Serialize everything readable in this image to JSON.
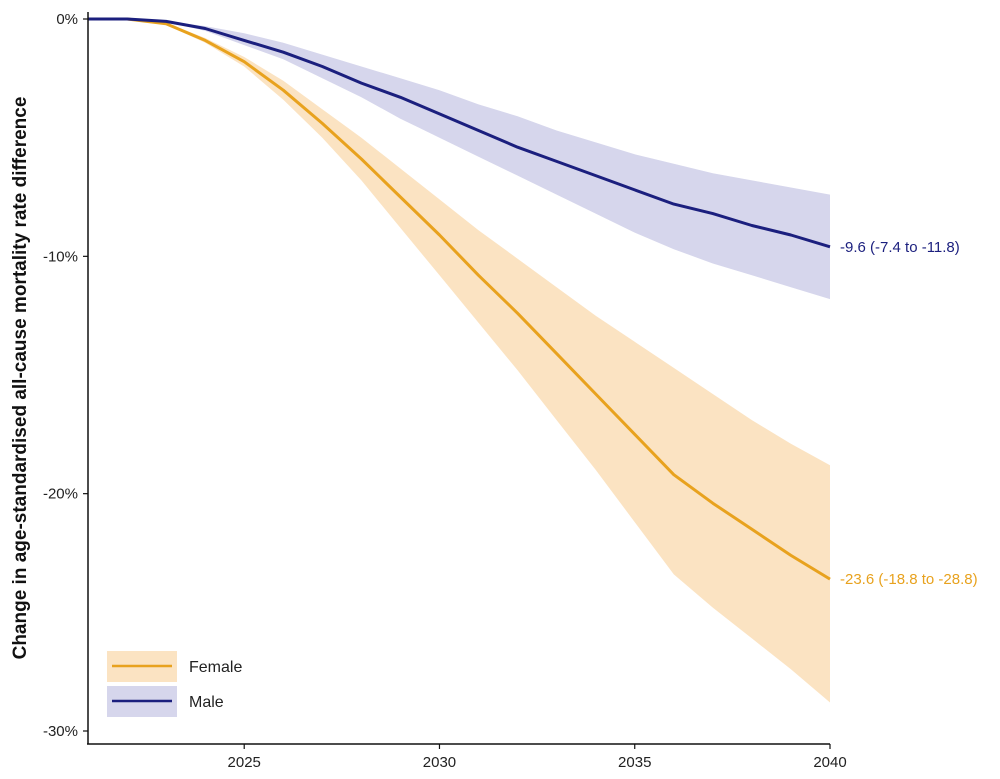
{
  "chart_data": {
    "type": "line",
    "ylabel": "Change in age-standardised all-cause mortality rate difference",
    "xlabel": "",
    "x": [
      2021,
      2022,
      2023,
      2024,
      2025,
      2026,
      2027,
      2028,
      2029,
      2030,
      2031,
      2032,
      2033,
      2034,
      2035,
      2036,
      2037,
      2038,
      2039,
      2040
    ],
    "xlim": [
      2021,
      2040
    ],
    "ylim": [
      -30,
      0
    ],
    "x_ticks": [
      2025,
      2030,
      2035,
      2040
    ],
    "y_ticks": [
      0,
      -10,
      -20,
      -30
    ],
    "x_tick_labels": [
      "2025",
      "2030",
      "2035",
      "2040"
    ],
    "y_tick_labels": [
      "0%",
      "-10%",
      "-20%",
      "-30%"
    ],
    "grid": false,
    "legend_position": "bottom-left",
    "series": [
      {
        "name": "Female",
        "color": "#E8A21E",
        "band_color": "#FBE3C2",
        "values": [
          0,
          0,
          -0.2,
          -0.9,
          -1.8,
          -3.0,
          -4.4,
          -5.9,
          -7.5,
          -9.1,
          -10.8,
          -12.4,
          -14.1,
          -15.8,
          -17.5,
          -19.2,
          -20.4,
          -21.5,
          -22.6,
          -23.6
        ],
        "upper": [
          0,
          0,
          -0.15,
          -0.8,
          -1.6,
          -2.6,
          -3.8,
          -5.0,
          -6.3,
          -7.6,
          -8.9,
          -10.1,
          -11.3,
          -12.5,
          -13.6,
          -14.7,
          -15.8,
          -16.9,
          -17.9,
          -18.8
        ],
        "lower": [
          0,
          0,
          -0.25,
          -1.0,
          -2.0,
          -3.4,
          -5.0,
          -6.8,
          -8.8,
          -10.8,
          -12.8,
          -14.8,
          -16.9,
          -19.0,
          -21.2,
          -23.4,
          -24.8,
          -26.1,
          -27.4,
          -28.8
        ],
        "end_label": "-23.6 (-18.8 to -28.8)"
      },
      {
        "name": "Male",
        "color": "#1B1F7E",
        "band_color": "#D6D6EC",
        "values": [
          0,
          0,
          -0.1,
          -0.4,
          -0.9,
          -1.4,
          -2.0,
          -2.7,
          -3.3,
          -4.0,
          -4.7,
          -5.4,
          -6.0,
          -6.6,
          -7.2,
          -7.8,
          -8.2,
          -8.7,
          -9.1,
          -9.6
        ],
        "upper": [
          0,
          0,
          -0.08,
          -0.3,
          -0.6,
          -1.0,
          -1.5,
          -2.0,
          -2.5,
          -3.0,
          -3.6,
          -4.1,
          -4.7,
          -5.2,
          -5.7,
          -6.1,
          -6.5,
          -6.8,
          -7.1,
          -7.4
        ],
        "lower": [
          0,
          0,
          -0.12,
          -0.5,
          -1.1,
          -1.7,
          -2.5,
          -3.3,
          -4.2,
          -5.0,
          -5.8,
          -6.6,
          -7.4,
          -8.2,
          -9.0,
          -9.7,
          -10.3,
          -10.8,
          -11.3,
          -11.8
        ],
        "end_label": "-9.6 (-7.4 to -11.8)"
      }
    ]
  }
}
